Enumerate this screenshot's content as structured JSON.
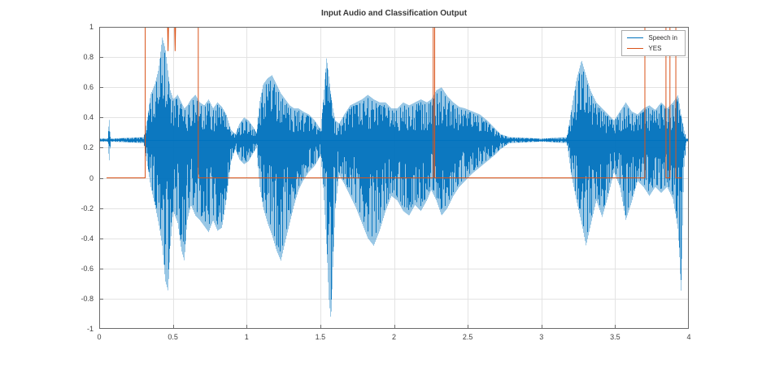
{
  "figure": {
    "background": "#ffffff"
  },
  "chart_data": {
    "type": "line",
    "title": "Input Audio and Classification Output",
    "xlabel": "",
    "ylabel": "",
    "xlim": [
      0,
      4
    ],
    "ylim": [
      -1,
      1
    ],
    "grid": true,
    "xticks": [
      "0",
      "0.5",
      "1",
      "1.5",
      "2",
      "2.5",
      "3",
      "3.5",
      "4"
    ],
    "xtick_values": [
      0,
      0.5,
      1,
      1.5,
      2,
      2.5,
      3,
      3.5,
      4
    ],
    "yticks": [
      "1",
      "0.8",
      "0.6",
      "0.4",
      "0.2",
      "0",
      "-0.2",
      "-0.4",
      "-0.6",
      "-0.8",
      "-1"
    ],
    "ytick_values": [
      1,
      0.8,
      0.6,
      0.4,
      0.2,
      0,
      -0.2,
      -0.4,
      -0.6,
      -0.8,
      -1
    ],
    "legend": {
      "position": "northeast",
      "items": [
        {
          "label": "Speech in",
          "color": "#0072BD"
        },
        {
          "label": "YES",
          "color": "#D95319"
        }
      ]
    },
    "series": [
      {
        "name": "Speech in",
        "kind": "waveform-envelope",
        "color": "#0072BD",
        "baseline": 0.25,
        "envelope": [
          [
            0.0,
            0.26,
            0.24
          ],
          [
            0.055,
            0.26,
            0.24
          ],
          [
            0.065,
            0.4,
            0.1
          ],
          [
            0.075,
            0.26,
            0.24
          ],
          [
            0.3,
            0.27,
            0.23
          ],
          [
            0.325,
            0.4,
            0.08
          ],
          [
            0.345,
            0.55,
            -0.05
          ],
          [
            0.375,
            0.62,
            -0.18
          ],
          [
            0.4,
            0.72,
            -0.3
          ],
          [
            0.425,
            0.93,
            -0.45
          ],
          [
            0.445,
            0.86,
            -0.68
          ],
          [
            0.465,
            0.7,
            -0.75
          ],
          [
            0.48,
            0.58,
            -0.45
          ],
          [
            0.5,
            0.52,
            -0.22
          ],
          [
            0.53,
            0.55,
            -0.3
          ],
          [
            0.555,
            0.5,
            -0.48
          ],
          [
            0.575,
            0.46,
            -0.55
          ],
          [
            0.595,
            0.48,
            -0.28
          ],
          [
            0.62,
            0.52,
            -0.18
          ],
          [
            0.65,
            0.55,
            -0.25
          ],
          [
            0.68,
            0.5,
            -0.28
          ],
          [
            0.71,
            0.48,
            -0.32
          ],
          [
            0.74,
            0.52,
            -0.36
          ],
          [
            0.77,
            0.46,
            -0.28
          ],
          [
            0.8,
            0.5,
            -0.35
          ],
          [
            0.83,
            0.47,
            -0.33
          ],
          [
            0.86,
            0.42,
            -0.15
          ],
          [
            0.89,
            0.32,
            0.1
          ],
          [
            0.92,
            0.29,
            0.19
          ],
          [
            0.95,
            0.36,
            0.12
          ],
          [
            0.98,
            0.4,
            0.09
          ],
          [
            1.01,
            0.38,
            0.11
          ],
          [
            1.04,
            0.34,
            0.16
          ],
          [
            1.065,
            0.3,
            0.2
          ],
          [
            1.085,
            0.5,
            -0.05
          ],
          [
            1.11,
            0.62,
            -0.2
          ],
          [
            1.14,
            0.66,
            -0.3
          ],
          [
            1.17,
            0.68,
            -0.38
          ],
          [
            1.2,
            0.62,
            -0.48
          ],
          [
            1.23,
            0.56,
            -0.55
          ],
          [
            1.26,
            0.52,
            -0.42
          ],
          [
            1.29,
            0.48,
            -0.3
          ],
          [
            1.32,
            0.46,
            -0.18
          ],
          [
            1.35,
            0.46,
            -0.08
          ],
          [
            1.38,
            0.44,
            -0.02
          ],
          [
            1.42,
            0.42,
            0.04
          ],
          [
            1.46,
            0.38,
            0.08
          ],
          [
            1.5,
            0.32,
            0.15
          ],
          [
            1.52,
            0.55,
            -0.1
          ],
          [
            1.54,
            0.8,
            -0.45
          ],
          [
            1.555,
            0.68,
            -0.8
          ],
          [
            1.57,
            0.55,
            -0.95
          ],
          [
            1.585,
            0.45,
            -0.55
          ],
          [
            1.6,
            0.38,
            -0.2
          ],
          [
            1.625,
            0.36,
            0.02
          ],
          [
            1.66,
            0.42,
            -0.04
          ],
          [
            1.7,
            0.48,
            -0.12
          ],
          [
            1.74,
            0.5,
            -0.2
          ],
          [
            1.78,
            0.52,
            -0.3
          ],
          [
            1.82,
            0.55,
            -0.4
          ],
          [
            1.86,
            0.52,
            -0.45
          ],
          [
            1.9,
            0.5,
            -0.35
          ],
          [
            1.94,
            0.5,
            -0.22
          ],
          [
            1.98,
            0.46,
            -0.12
          ],
          [
            2.02,
            0.46,
            -0.15
          ],
          [
            2.06,
            0.5,
            -0.22
          ],
          [
            2.1,
            0.48,
            -0.25
          ],
          [
            2.14,
            0.5,
            -0.18
          ],
          [
            2.18,
            0.52,
            -0.22
          ],
          [
            2.22,
            0.5,
            -0.15
          ],
          [
            2.25,
            0.52,
            -0.08
          ],
          [
            2.285,
            0.58,
            -0.15
          ],
          [
            2.32,
            0.6,
            -0.25
          ],
          [
            2.36,
            0.54,
            -0.2
          ],
          [
            2.4,
            0.5,
            -0.12
          ],
          [
            2.44,
            0.47,
            -0.06
          ],
          [
            2.48,
            0.46,
            -0.02
          ],
          [
            2.53,
            0.44,
            0.03
          ],
          [
            2.58,
            0.42,
            0.07
          ],
          [
            2.63,
            0.38,
            0.11
          ],
          [
            2.68,
            0.33,
            0.15
          ],
          [
            2.72,
            0.29,
            0.19
          ],
          [
            2.78,
            0.27,
            0.23
          ],
          [
            3.0,
            0.26,
            0.24
          ],
          [
            3.17,
            0.27,
            0.23
          ],
          [
            3.2,
            0.45,
            0.02
          ],
          [
            3.235,
            0.65,
            -0.15
          ],
          [
            3.27,
            0.78,
            -0.3
          ],
          [
            3.3,
            0.68,
            -0.45
          ],
          [
            3.33,
            0.58,
            -0.32
          ],
          [
            3.37,
            0.5,
            -0.15
          ],
          [
            3.41,
            0.46,
            -0.26
          ],
          [
            3.45,
            0.42,
            -0.12
          ],
          [
            3.49,
            0.38,
            0.04
          ],
          [
            3.53,
            0.44,
            -0.06
          ],
          [
            3.57,
            0.5,
            -0.28
          ],
          [
            3.61,
            0.44,
            -0.16
          ],
          [
            3.65,
            0.42,
            -0.02
          ],
          [
            3.69,
            0.46,
            -0.06
          ],
          [
            3.73,
            0.48,
            -0.12
          ],
          [
            3.77,
            0.45,
            -0.06
          ],
          [
            3.81,
            0.5,
            -0.1
          ],
          [
            3.85,
            0.46,
            -0.06
          ],
          [
            3.89,
            0.5,
            -0.14
          ],
          [
            3.925,
            0.55,
            -0.35
          ],
          [
            3.945,
            0.42,
            -0.75
          ],
          [
            3.965,
            0.32,
            0.05
          ],
          [
            3.98,
            0.26,
            0.24
          ],
          [
            4.0,
            0.26,
            0.24
          ]
        ]
      },
      {
        "name": "YES",
        "kind": "step",
        "color": "#D95319",
        "points": [
          [
            0.05,
            0
          ],
          [
            0.312,
            0
          ],
          [
            0.312,
            1
          ],
          [
            0.464,
            1
          ],
          [
            0.467,
            0.84
          ],
          [
            0.47,
            1
          ],
          [
            0.512,
            1
          ],
          [
            0.515,
            0.84
          ],
          [
            0.518,
            1
          ],
          [
            0.672,
            1
          ],
          [
            0.672,
            0
          ],
          [
            2.266,
            0
          ],
          [
            2.266,
            1
          ],
          [
            2.276,
            1
          ],
          [
            2.276,
            0
          ],
          [
            3.702,
            0
          ],
          [
            3.702,
            1
          ],
          [
            3.845,
            1
          ],
          [
            3.845,
            0
          ],
          [
            3.872,
            0
          ],
          [
            3.872,
            1
          ],
          [
            3.912,
            1
          ],
          [
            3.912,
            0
          ],
          [
            3.952,
            0
          ]
        ]
      }
    ]
  }
}
